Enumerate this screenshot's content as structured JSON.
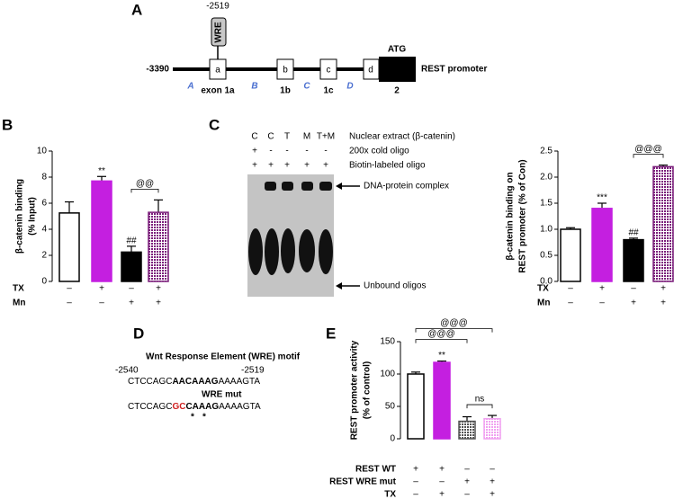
{
  "diagram_a": {
    "panel_label": "A",
    "wre_position": "-2519",
    "wre": "WRE",
    "start": "-3390",
    "exons": [
      "a",
      "b",
      "c",
      "d"
    ],
    "atg": "ATG",
    "promoter": "REST promoter",
    "regions": [
      "A",
      "B",
      "C",
      "D"
    ],
    "exon_names": [
      "exon 1a",
      "1b",
      "1c",
      "2"
    ]
  },
  "gel_c": {
    "panel_label": "C",
    "lanes": [
      "C",
      "C",
      "T",
      "M",
      "T+M"
    ],
    "rows": [
      {
        "name": "Nuclear extract (β-catenin)"
      },
      {
        "name": "200x cold oligo",
        "marks": [
          "+",
          "-",
          "-",
          "-",
          "-"
        ]
      },
      {
        "name": "Biotin-labeled oligo",
        "marks": [
          "+",
          "+",
          "+",
          "+",
          "+"
        ]
      }
    ],
    "complex": "DNA-protein complex",
    "unbound": "Unbound oligos"
  },
  "sequence_d": {
    "panel_label": "D",
    "motif_title": "Wnt Response Element (WRE) motif",
    "start": "-2540",
    "end": "-2519",
    "wt": [
      "CTCCAGC",
      "AACAAAG",
      "AAAAGTA"
    ],
    "mut_title": "WRE mut",
    "mut": [
      "CTCCAGC",
      "GC",
      "CAAAG",
      "AAAAGTA"
    ],
    "stars": [
      "*",
      "*"
    ]
  },
  "chart_data": [
    {
      "type": "bar",
      "panel_label": "B",
      "ylabel": [
        "β-catenin binding",
        "(% Input)"
      ],
      "ylim": [
        0,
        10
      ],
      "yticks": [
        0,
        2,
        4,
        6,
        8,
        10
      ],
      "series": [
        {
          "values": [
            5.25,
            7.7,
            2.25,
            5.3
          ],
          "errors": [
            0.85,
            0.35,
            0.45,
            0.95
          ]
        }
      ],
      "colors": [
        "#ffffff",
        "#c41fe0",
        "#000000",
        "#7b1f7b"
      ],
      "patterns": [
        false,
        false,
        false,
        true
      ],
      "bar_annotations": [
        null,
        "**",
        "##",
        null
      ],
      "brackets": [
        {
          "from": 2,
          "to": 3,
          "label": "@@"
        }
      ],
      "conditions": [
        {
          "name": "TX",
          "marks": [
            "–",
            "+",
            "–",
            "+"
          ]
        },
        {
          "name": "Mn",
          "marks": [
            "–",
            "–",
            "+",
            "+"
          ]
        }
      ]
    },
    {
      "type": "bar",
      "ylabel": [
        "β-catenin binding on",
        "REST promoter (% of  Con)"
      ],
      "ylim": [
        0,
        2.5
      ],
      "yticks": [
        {
          "value": 0,
          "label": "0.0"
        },
        0.5,
        {
          "value": 1,
          "label": "1.0"
        },
        1.5,
        {
          "value": 2,
          "label": "2.0"
        },
        2.5
      ],
      "series": [
        {
          "values": [
            1.0,
            1.4,
            0.8,
            2.2
          ],
          "errors": [
            0.03,
            0.1,
            0.03,
            0.03
          ]
        }
      ],
      "colors": [
        "#ffffff",
        "#c41fe0",
        "#000000",
        "#7b1f7b"
      ],
      "patterns": [
        false,
        false,
        false,
        true
      ],
      "bar_annotations": [
        null,
        "***",
        "##",
        null
      ],
      "brackets": [
        {
          "from": 2,
          "to": 3,
          "label": "@@@"
        }
      ],
      "conditions": [
        {
          "name": "TX",
          "marks": [
            "–",
            "+",
            "–",
            "+"
          ]
        },
        {
          "name": "Mn",
          "marks": [
            "–",
            "–",
            "+",
            "+"
          ]
        }
      ]
    },
    {
      "type": "bar",
      "panel_label": "E",
      "ylabel": [
        "REST promoter activity",
        "(% of control)"
      ],
      "ylim": [
        0,
        150
      ],
      "yticks": [
        0,
        50,
        100,
        150
      ],
      "series": [
        {
          "values": [
            100,
            118,
            27,
            31
          ],
          "errors": [
            3,
            2,
            7,
            5
          ]
        }
      ],
      "colors": [
        "#ffffff",
        "#c41fe0",
        "#555555",
        "#f0a0f0"
      ],
      "patterns": [
        false,
        false,
        true,
        true
      ],
      "bar_annotations": [
        null,
        "**",
        null,
        null
      ],
      "brackets": [
        {
          "from": 2,
          "to": 3,
          "label": "ns"
        },
        {
          "from": 0,
          "to": 2,
          "label": "@@@"
        },
        {
          "from": 0,
          "to": 3,
          "label": "@@@"
        }
      ],
      "conditions": [
        {
          "name": "REST WT",
          "marks": [
            "+",
            "+",
            "–",
            "–"
          ]
        },
        {
          "name": "REST WRE mut",
          "marks": [
            "–",
            "–",
            "+",
            "+"
          ]
        },
        {
          "name": "TX",
          "marks": [
            "–",
            "+",
            "–",
            "+"
          ]
        }
      ]
    }
  ]
}
